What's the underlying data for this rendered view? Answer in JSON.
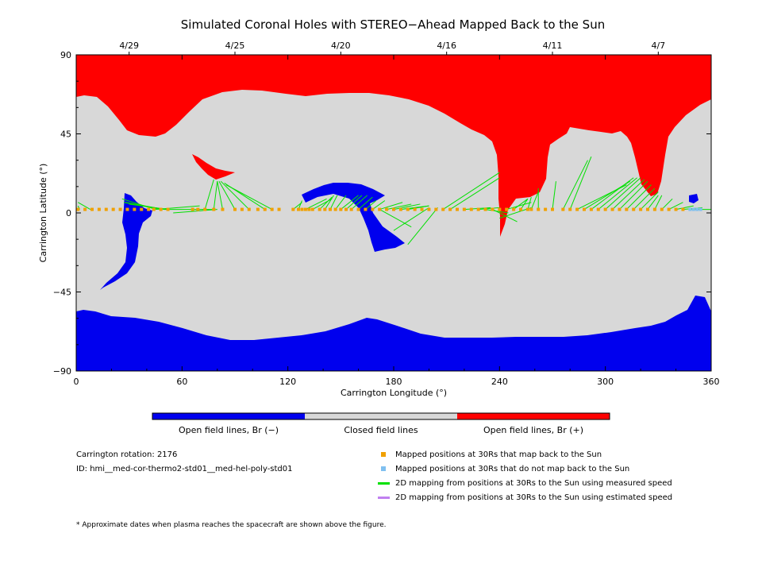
{
  "chart_data": {
    "type": "map",
    "title": "Simulated Coronal Holes with STEREO−Ahead Mapped Back to the Sun",
    "xlabel": "Carrington Longitude (°)",
    "ylabel": "Carrington Latitude (°)",
    "xlim": [
      0,
      360
    ],
    "ylim": [
      -90,
      90
    ],
    "x_ticks": [
      "0",
      "60",
      "120",
      "180",
      "240",
      "300",
      "360"
    ],
    "y_ticks": [
      "−90",
      "−45",
      "0",
      "45",
      "90"
    ],
    "top_date_ticks": [
      {
        "label": "4/29",
        "lon": 30
      },
      {
        "label": "4/25",
        "lon": 90
      },
      {
        "label": "4/20",
        "lon": 150
      },
      {
        "label": "4/16",
        "lon": 210
      },
      {
        "label": "4/11",
        "lon": 270
      },
      {
        "label": "4/7",
        "lon": 330
      }
    ],
    "colorbar": {
      "labels": [
        "Open field lines, Br (−)",
        "Closed field lines",
        "Open field lines, Br (+)"
      ],
      "colors": [
        "#0000ee",
        "#d8d8d8",
        "#ff0000"
      ]
    },
    "series": [
      {
        "name": "Mapped positions at 30Rs that map back to the Sun",
        "color": "#f0a000"
      },
      {
        "name": "Mapped positions at 30Rs that do not map back to the Sun",
        "color": "#80c0f0"
      },
      {
        "name": "2D mapping from positions at 30Rs to the Sun using measured speed",
        "color": "#00e000"
      },
      {
        "name": "2D mapping from positions at 30Rs to the Sun using estimated speed",
        "color": "#c080f0"
      }
    ],
    "points_30Rs_lon": [
      1,
      5,
      9,
      13,
      17,
      21,
      25,
      29,
      33,
      37,
      41,
      44,
      48,
      52,
      66,
      69,
      73,
      78,
      83,
      90,
      94,
      98,
      103,
      107,
      111,
      115,
      123,
      126,
      128,
      130,
      132,
      134,
      138,
      141,
      144,
      147,
      150,
      153,
      156,
      160,
      164,
      168,
      172,
      176,
      180,
      184,
      188,
      192,
      196,
      200,
      204,
      208,
      212,
      216,
      220,
      224,
      228,
      232,
      236,
      240,
      244,
      248,
      252,
      256,
      258,
      262,
      266,
      270,
      276,
      280,
      284,
      288,
      292,
      296,
      300,
      304,
      308,
      312,
      316,
      320,
      324,
      328,
      332,
      336,
      340,
      344
    ],
    "points_30Rs_lat": 2,
    "points_no_map_lon": [
      348,
      350,
      352,
      354
    ],
    "mapping_lines": [
      [
        2,
        2,
        1,
        4
      ],
      [
        8,
        2,
        1,
        6
      ],
      [
        45,
        2,
        26,
        8
      ],
      [
        48,
        2,
        27,
        6
      ],
      [
        50,
        2,
        28,
        6
      ],
      [
        52,
        2,
        30,
        5
      ],
      [
        45,
        2,
        70,
        4
      ],
      [
        55,
        0,
        80,
        2
      ],
      [
        50,
        2,
        78,
        2
      ],
      [
        73,
        2,
        78,
        19
      ],
      [
        78,
        2,
        80,
        18
      ],
      [
        83,
        2,
        80,
        18
      ],
      [
        90,
        2,
        81,
        18
      ],
      [
        98,
        2,
        82,
        18
      ],
      [
        107,
        2,
        84,
        17
      ],
      [
        111,
        2,
        85,
        16
      ],
      [
        123,
        2,
        128,
        6
      ],
      [
        126,
        2,
        128,
        7
      ],
      [
        130,
        2,
        142,
        8
      ],
      [
        134,
        2,
        145,
        8
      ],
      [
        138,
        2,
        145,
        9
      ],
      [
        141,
        2,
        146,
        10
      ],
      [
        144,
        2,
        148,
        10
      ],
      [
        147,
        2,
        153,
        10
      ],
      [
        150,
        2,
        160,
        10
      ],
      [
        153,
        2,
        162,
        10
      ],
      [
        156,
        2,
        165,
        10
      ],
      [
        160,
        2,
        168,
        9
      ],
      [
        164,
        2,
        170,
        7
      ],
      [
        168,
        2,
        175,
        7
      ],
      [
        172,
        2,
        185,
        6
      ],
      [
        176,
        2,
        190,
        5
      ],
      [
        180,
        2,
        195,
        5
      ],
      [
        184,
        2,
        200,
        4
      ],
      [
        188,
        2,
        200,
        4
      ],
      [
        172,
        2,
        190,
        -8
      ],
      [
        180,
        -10,
        200,
        3
      ],
      [
        188,
        -18,
        205,
        3
      ],
      [
        208,
        2,
        240,
        23
      ],
      [
        212,
        2,
        240,
        20
      ],
      [
        220,
        2,
        235,
        3
      ],
      [
        228,
        2,
        240,
        3
      ],
      [
        232,
        2,
        245,
        0
      ],
      [
        236,
        2,
        250,
        -5
      ],
      [
        240,
        -3,
        258,
        3
      ],
      [
        244,
        2,
        258,
        6
      ],
      [
        248,
        2,
        256,
        8
      ],
      [
        252,
        2,
        256,
        8
      ],
      [
        256,
        2,
        258,
        9
      ],
      [
        258,
        2,
        262,
        12
      ],
      [
        262,
        2,
        262,
        14
      ],
      [
        270,
        2,
        272,
        18
      ],
      [
        276,
        2,
        290,
        30
      ],
      [
        280,
        2,
        292,
        32
      ],
      [
        284,
        2,
        312,
        16
      ],
      [
        288,
        2,
        314,
        18
      ],
      [
        292,
        2,
        316,
        20
      ],
      [
        296,
        2,
        318,
        20
      ],
      [
        300,
        2,
        320,
        20
      ],
      [
        304,
        2,
        322,
        19
      ],
      [
        308,
        2,
        324,
        18
      ],
      [
        312,
        2,
        326,
        16
      ],
      [
        316,
        2,
        328,
        14
      ],
      [
        320,
        2,
        330,
        12
      ],
      [
        324,
        2,
        330,
        10
      ],
      [
        328,
        2,
        332,
        10
      ],
      [
        332,
        2,
        338,
        8
      ],
      [
        336,
        2,
        344,
        6
      ],
      [
        340,
        2,
        350,
        4
      ],
      [
        344,
        2,
        355,
        3
      ],
      [
        348,
        2,
        360,
        2
      ]
    ]
  },
  "info": {
    "rotation": "Carrington rotation: 2176",
    "id": "ID: hmi__med-cor-thermo2-std01__med-hel-poly-std01",
    "footnote": "* Approximate dates when plasma reaches the spacecraft are shown above the figure."
  }
}
